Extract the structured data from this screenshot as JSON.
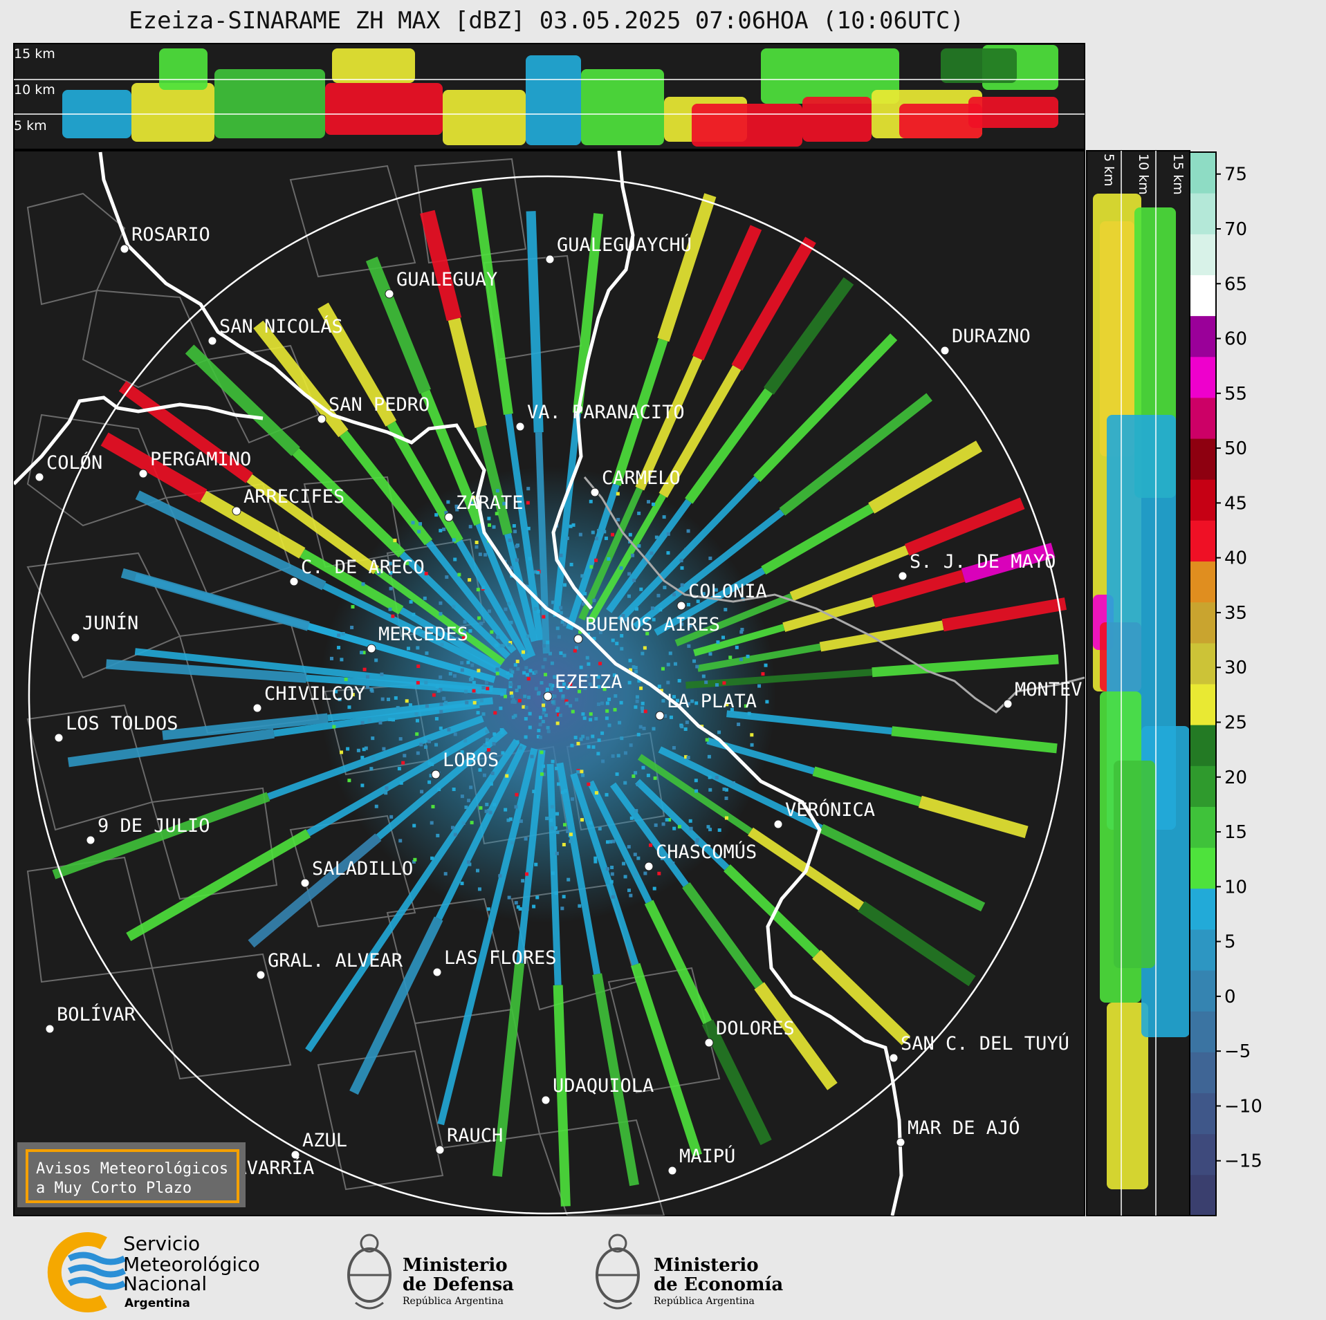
{
  "title": "Ezeiza-SINARAME ZH MAX [dBZ] 03.05.2025 07:06HOA (10:06UTC)",
  "top_profile": {
    "height_labels": [
      "15 km",
      "10 km",
      "5 km"
    ]
  },
  "side_profile": {
    "height_labels": [
      "5 km",
      "10 km",
      "15 km"
    ]
  },
  "colorbar": {
    "ticks": [
      "75",
      "70",
      "65",
      "60",
      "55",
      "50",
      "45",
      "40",
      "35",
      "30",
      "25",
      "20",
      "15",
      "10",
      "5",
      "0",
      "−5",
      "−10",
      "−15"
    ],
    "colors": [
      "#3a3f6e",
      "#3e4a7c",
      "#3f5789",
      "#3f6595",
      "#3b74a2",
      "#3584b1",
      "#2d96c2",
      "#22aad8",
      "#4ee23c",
      "#3fc23a",
      "#2f9a2d",
      "#237a24",
      "#e9e933",
      "#ccc337",
      "#c9a42f",
      "#e08e1f",
      "#ef1025",
      "#c60014",
      "#8e0010",
      "#cc0066",
      "#ee00cc",
      "#9a0099",
      "#ffffff",
      "#d8f2e8",
      "#b4e8d8",
      "#8edcc4"
    ],
    "range": [
      -20,
      77
    ]
  },
  "map_labels": [
    {
      "name": "ROSARIO"
    },
    {
      "name": "GUALEGUAYCHÚ"
    },
    {
      "name": "GUALEGUAY"
    },
    {
      "name": "SAN NICOLÁS"
    },
    {
      "name": "DURAZNO"
    },
    {
      "name": "SAN PEDRO"
    },
    {
      "name": "VA. PARANACITO"
    },
    {
      "name": "COLÓN"
    },
    {
      "name": "PERGAMINO"
    },
    {
      "name": "CARMELO"
    },
    {
      "name": "ARRECIFES"
    },
    {
      "name": "ZÁRATE"
    },
    {
      "name": "S. J. DE MAYO"
    },
    {
      "name": "C. DE ARECO"
    },
    {
      "name": "COLONIA"
    },
    {
      "name": "JUNÍN"
    },
    {
      "name": "BUENOS AIRES"
    },
    {
      "name": "MERCEDES"
    },
    {
      "name": "EZEIZA"
    },
    {
      "name": "MONTEV"
    },
    {
      "name": "CHIVILCOY"
    },
    {
      "name": "LA PLATA"
    },
    {
      "name": "LOS TOLDOS"
    },
    {
      "name": "LOBOS"
    },
    {
      "name": "VERÓNICA"
    },
    {
      "name": "9 DE JULIO"
    },
    {
      "name": "CHASCOMÚS"
    },
    {
      "name": "SALADILLO"
    },
    {
      "name": "GRAL. ALVEAR"
    },
    {
      "name": "LAS FLORES"
    },
    {
      "name": "BOLÍVAR"
    },
    {
      "name": "DOLORES"
    },
    {
      "name": "SAN C. DEL TUYÚ"
    },
    {
      "name": "UDAQUIOLA"
    },
    {
      "name": "MAR DE AJÓ"
    },
    {
      "name": "AZUL"
    },
    {
      "name": "RAUCH"
    },
    {
      "name": "MAIPÚ"
    },
    {
      "name": "OLAVARRÍA"
    }
  ],
  "warning_box": {
    "line1": "Avisos Meteorológicos",
    "line2": "a Muy Corto Plazo"
  },
  "logos": {
    "smn": {
      "line1": "Servicio",
      "line2": "Meteorológico",
      "line3": "Nacional",
      "line4": "Argentina"
    },
    "defensa": {
      "line1": "Ministerio",
      "line2": "de Defensa",
      "line3": "República Argentina"
    },
    "economia": {
      "line1": "Ministerio",
      "line2": "de Economía",
      "line3": "República Argentina"
    }
  },
  "colors": {
    "background": "#1c1c1c",
    "page": "#e8e8e8",
    "smn_orange": "#f5a800",
    "smn_blue": "#2a8fd6",
    "box_orange": "#f5a000"
  }
}
